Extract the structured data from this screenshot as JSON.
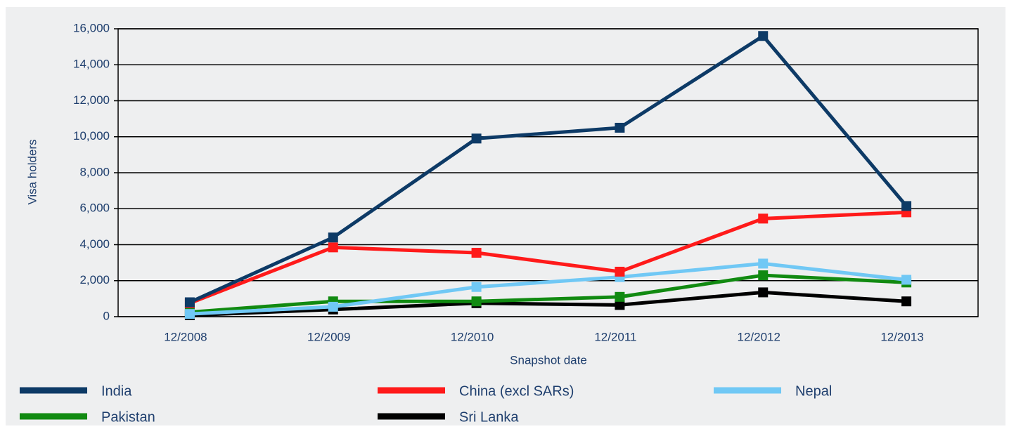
{
  "chart_data": {
    "type": "line",
    "x_label": "Snapshot date",
    "y_label": "Visa holders",
    "categories": [
      "12/2008",
      "12/2009",
      "12/2010",
      "12/2011",
      "12/2012",
      "12/2013"
    ],
    "series": [
      {
        "name": "India",
        "color": "#0d3a66",
        "values": [
          800,
          4400,
          9900,
          10500,
          15600,
          6150
        ]
      },
      {
        "name": "China (excl SARs)",
        "color": "#ff1a1a",
        "values": [
          750,
          3850,
          3550,
          2500,
          5450,
          5800
        ]
      },
      {
        "name": "Nepal",
        "color": "#70c8f5",
        "values": [
          150,
          550,
          1650,
          2200,
          2950,
          2050
        ]
      },
      {
        "name": "Pakistan",
        "color": "#118a11",
        "values": [
          250,
          850,
          850,
          1100,
          2300,
          1900
        ]
      },
      {
        "name": "Sri Lanka",
        "color": "#000000",
        "values": [
          80,
          400,
          750,
          650,
          1350,
          850
        ]
      }
    ],
    "ylim": [
      0,
      16000
    ],
    "yticks": [
      0,
      {
        "value": 2000,
        "label": "2,000"
      },
      {
        "value": 4000,
        "label": "4,000"
      },
      {
        "value": 6000,
        "label": "6,000"
      },
      {
        "value": 8000,
        "label": "8,000"
      },
      {
        "value": 10000,
        "label": "10,000"
      },
      {
        "value": 12000,
        "label": "12,000"
      },
      {
        "value": 14000,
        "label": "14,000"
      },
      {
        "value": 16000,
        "label": "16,000"
      }
    ],
    "grid": true,
    "legend": "bottom"
  }
}
